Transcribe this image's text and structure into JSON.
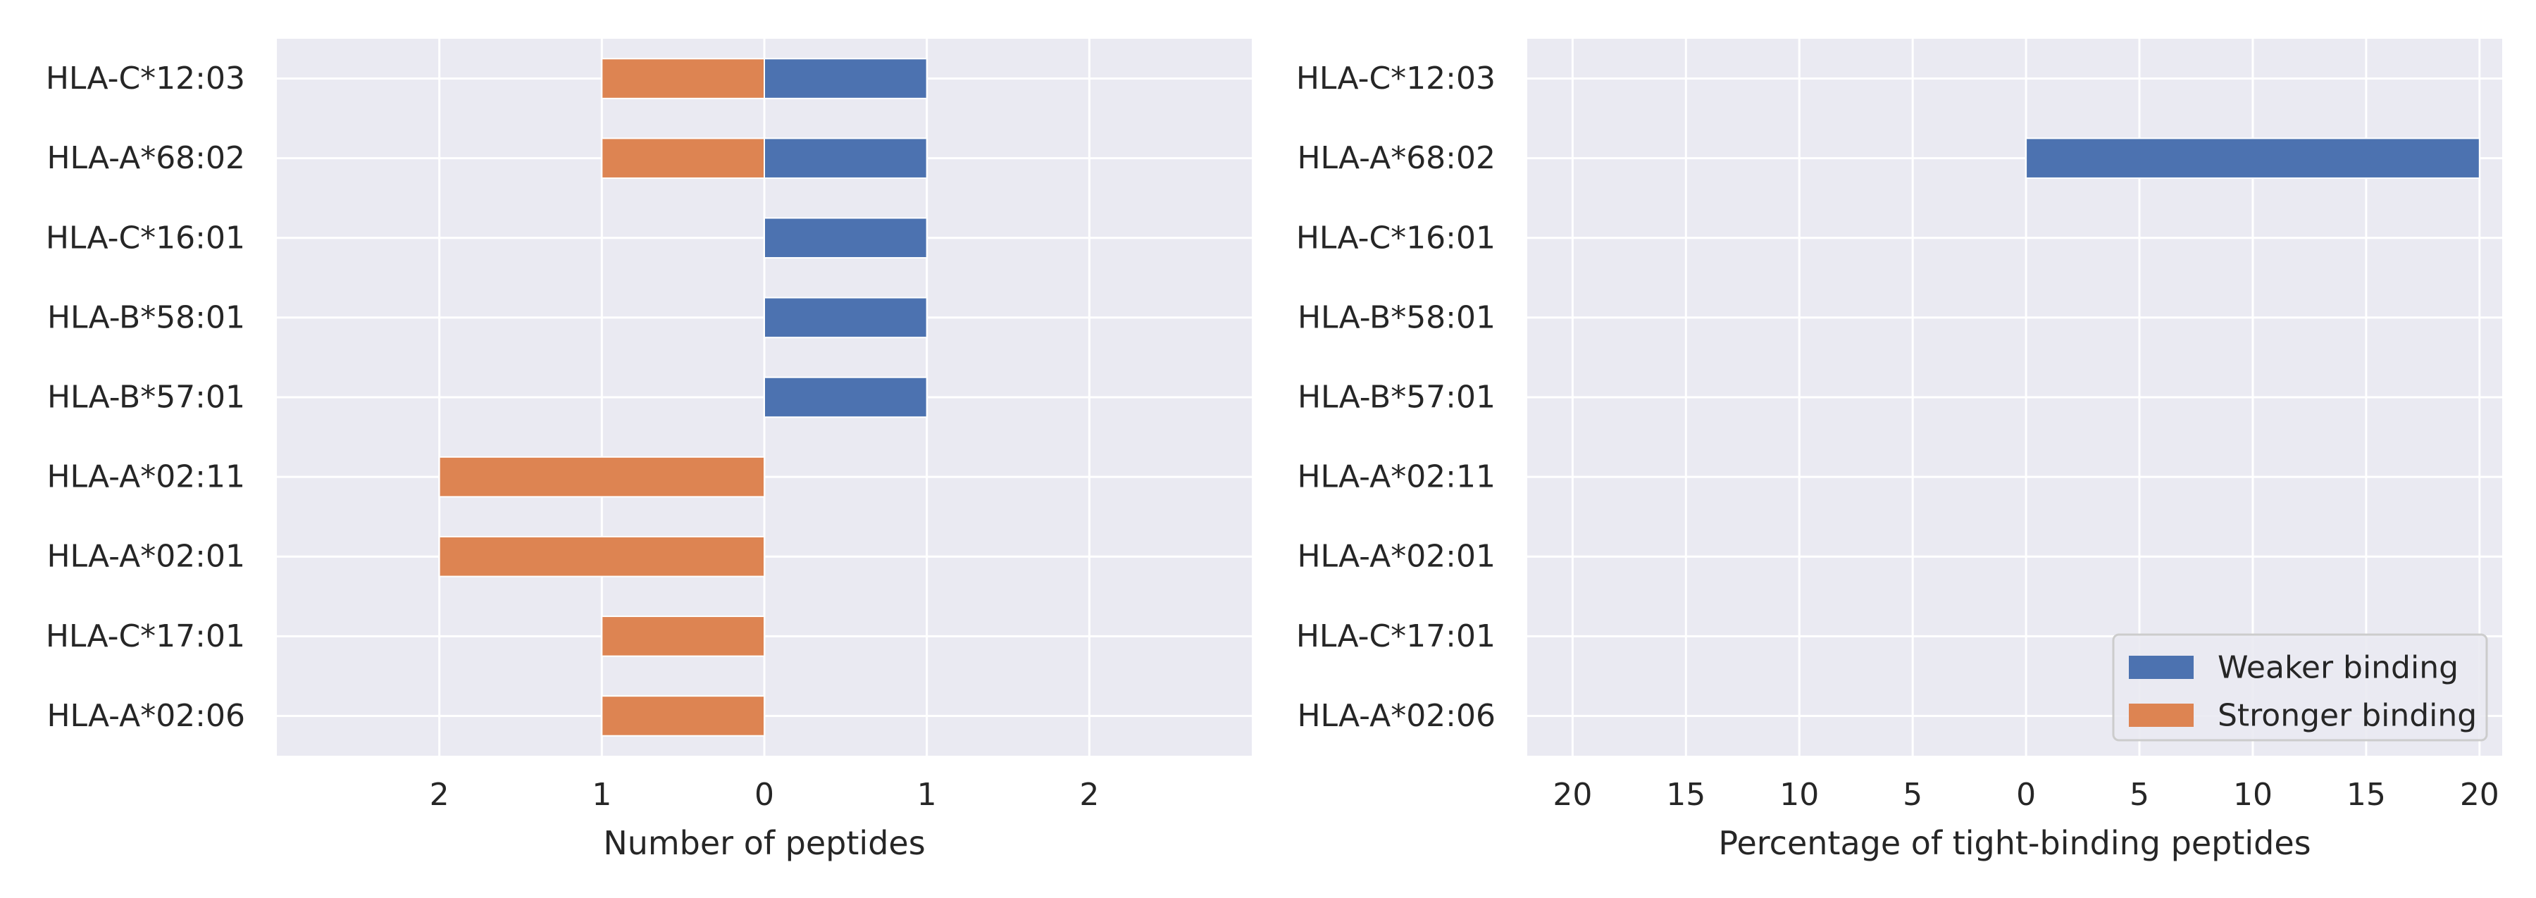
{
  "colors": {
    "background": "#eaeaf2",
    "grid": "#ffffff",
    "weaker": "#4c72b0",
    "stronger": "#dd8452",
    "text": "#262626"
  },
  "legend": {
    "position": "lower-right",
    "entries": [
      {
        "label": "Weaker binding",
        "color": "#4c72b0"
      },
      {
        "label": "Stronger binding",
        "color": "#dd8452"
      }
    ]
  },
  "chart_data": [
    {
      "type": "bar",
      "orientation": "horizontal",
      "diverging": true,
      "categories": [
        "HLA-C*12:03",
        "HLA-A*68:02",
        "HLA-C*16:01",
        "HLA-B*58:01",
        "HLA-B*57:01",
        "HLA-A*02:11",
        "HLA-A*02:01",
        "HLA-C*17:01",
        "HLA-A*02:06"
      ],
      "series": [
        {
          "name": "Weaker binding",
          "side": "right",
          "values": [
            1,
            1,
            1,
            1,
            1,
            0,
            0,
            0,
            0
          ]
        },
        {
          "name": "Stronger binding",
          "side": "left",
          "values": [
            1,
            1,
            0,
            0,
            0,
            2,
            2,
            1,
            1
          ]
        }
      ],
      "xlabel": "Number of peptides",
      "ylabel": "",
      "xlim": [
        -3,
        3
      ],
      "xticks": [
        -2,
        -1,
        0,
        1,
        2
      ],
      "xtick_labels": [
        "2",
        "1",
        "0",
        "1",
        "2"
      ],
      "grid": true,
      "legend": false
    },
    {
      "type": "bar",
      "orientation": "horizontal",
      "diverging": true,
      "categories": [
        "HLA-C*12:03",
        "HLA-A*68:02",
        "HLA-C*16:01",
        "HLA-B*58:01",
        "HLA-B*57:01",
        "HLA-A*02:11",
        "HLA-A*02:01",
        "HLA-C*17:01",
        "HLA-A*02:06"
      ],
      "series": [
        {
          "name": "Weaker binding",
          "side": "right",
          "values": [
            0,
            20,
            0,
            0,
            0,
            0,
            0,
            0,
            0
          ]
        },
        {
          "name": "Stronger binding",
          "side": "left",
          "values": [
            0,
            0,
            0,
            0,
            0,
            0,
            0,
            0,
            0
          ]
        }
      ],
      "xlabel": "Percentage of tight-binding peptides",
      "ylabel": "",
      "xlim": [
        -22,
        21
      ],
      "xticks": [
        -20,
        -15,
        -10,
        -5,
        0,
        5,
        10,
        15,
        20
      ],
      "xtick_labels": [
        "20",
        "15",
        "10",
        "5",
        "0",
        "5",
        "10",
        "15",
        "20"
      ],
      "grid": true,
      "legend": true
    }
  ]
}
